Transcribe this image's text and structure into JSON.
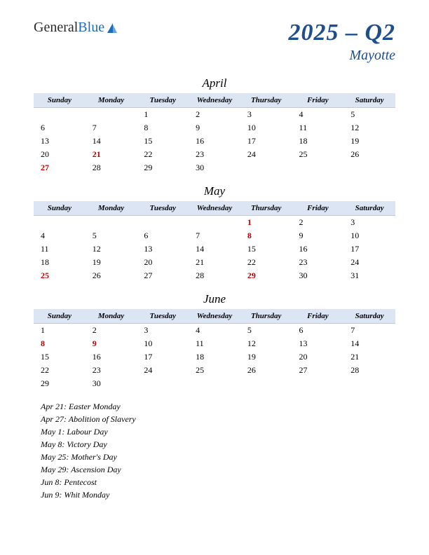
{
  "logo": {
    "part1": "General",
    "part2": "Blue"
  },
  "title": {
    "main": "2025 – Q2",
    "sub": "Mayotte"
  },
  "dayHeaders": [
    "Sunday",
    "Monday",
    "Tuesday",
    "Wednesday",
    "Thursday",
    "Friday",
    "Saturday"
  ],
  "colors": {
    "header_bg": "#dbe5f4",
    "title_color": "#1e4e8c",
    "holiday_color": "#c00000",
    "logo_blue": "#1e6bb8"
  },
  "months": [
    {
      "name": "April",
      "weeks": [
        [
          "",
          "",
          "1",
          "2",
          "3",
          "4",
          "5"
        ],
        [
          "6",
          "7",
          "8",
          "9",
          "10",
          "11",
          "12"
        ],
        [
          "13",
          "14",
          "15",
          "16",
          "17",
          "18",
          "19"
        ],
        [
          "20",
          "21",
          "22",
          "23",
          "24",
          "25",
          "26"
        ],
        [
          "27",
          "28",
          "29",
          "30",
          "",
          "",
          ""
        ]
      ],
      "holidays": [
        "21",
        "27"
      ]
    },
    {
      "name": "May",
      "weeks": [
        [
          "",
          "",
          "",
          "",
          "1",
          "2",
          "3"
        ],
        [
          "4",
          "5",
          "6",
          "7",
          "8",
          "9",
          "10"
        ],
        [
          "11",
          "12",
          "13",
          "14",
          "15",
          "16",
          "17"
        ],
        [
          "18",
          "19",
          "20",
          "21",
          "22",
          "23",
          "24"
        ],
        [
          "25",
          "26",
          "27",
          "28",
          "29",
          "30",
          "31"
        ]
      ],
      "holidays": [
        "1",
        "8",
        "25",
        "29"
      ]
    },
    {
      "name": "June",
      "weeks": [
        [
          "1",
          "2",
          "3",
          "4",
          "5",
          "6",
          "7"
        ],
        [
          "8",
          "9",
          "10",
          "11",
          "12",
          "13",
          "14"
        ],
        [
          "15",
          "16",
          "17",
          "18",
          "19",
          "20",
          "21"
        ],
        [
          "22",
          "23",
          "24",
          "25",
          "26",
          "27",
          "28"
        ],
        [
          "29",
          "30",
          "",
          "",
          "",
          "",
          ""
        ]
      ],
      "holidays": [
        "8",
        "9"
      ]
    }
  ],
  "holidayList": [
    "Apr 21: Easter Monday",
    "Apr 27: Abolition of Slavery",
    "May 1: Labour Day",
    "May 8: Victory Day",
    "May 25: Mother's Day",
    "May 29: Ascension Day",
    "Jun 8: Pentecost",
    "Jun 9: Whit Monday"
  ]
}
